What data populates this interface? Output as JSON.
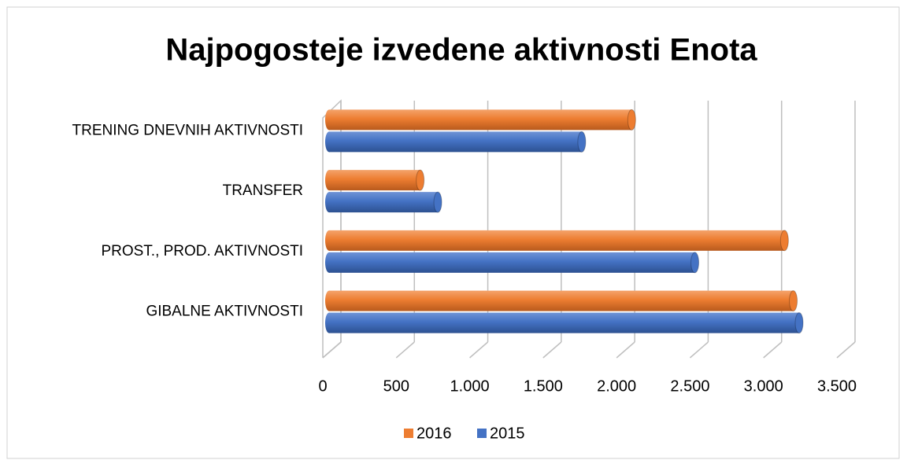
{
  "chart_data": {
    "type": "bar",
    "orientation": "horizontal",
    "title": "Najpogosteje izvedene aktivnosti  Enota",
    "categories": [
      "GIBALNE AKTIVNOSTI",
      "PROST., PROD. AKTIVNOSTI",
      "TRANSFER",
      "TRENING DNEVNIH AKTIVNOSTI"
    ],
    "series": [
      {
        "name": "2016",
        "color": "#ed7d31",
        "values": [
          3160,
          3100,
          620,
          2060
        ]
      },
      {
        "name": "2015",
        "color": "#4472c4",
        "values": [
          3200,
          2490,
          740,
          1720
        ]
      }
    ],
    "xlim": [
      0,
      3500
    ],
    "xticks": [
      0,
      500,
      {
        "value": 1000,
        "label": "1.000"
      },
      {
        "value": 1500,
        "label": "1.500"
      },
      {
        "value": 2000,
        "label": "2.000"
      },
      {
        "value": 2500,
        "label": "2.500"
      },
      {
        "value": 3000,
        "label": "3.000"
      },
      {
        "value": 3500,
        "label": "3.500"
      }
    ],
    "grid": true,
    "legend": "bottom"
  }
}
